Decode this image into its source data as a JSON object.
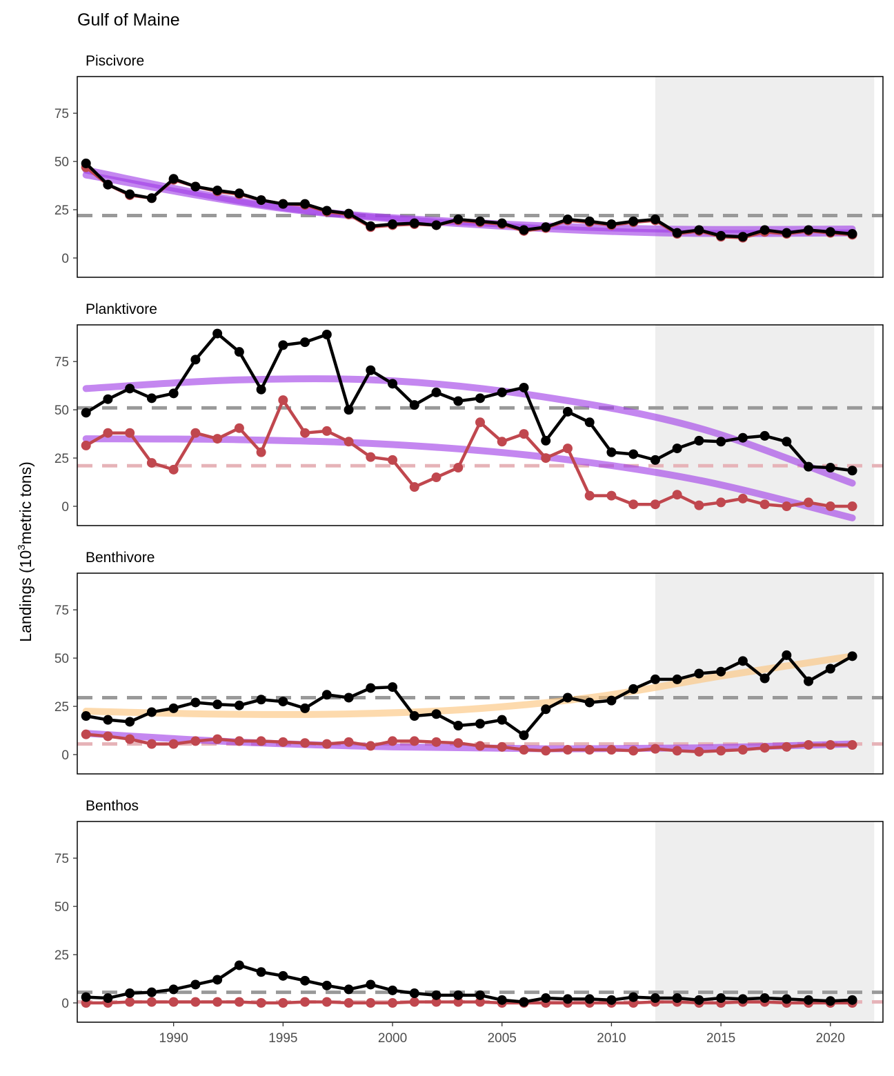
{
  "chart_data": {
    "type": "line",
    "title": "Gulf of Maine",
    "ylabel": "Landings (10^3 metric tons)",
    "ylabel_parts": {
      "prefix": "Landings (10",
      "superscript": "3",
      "suffix": "metric tons)"
    },
    "xlabel": "",
    "xlim": [
      1985.6,
      2022.4
    ],
    "ylim": [
      -10,
      94
    ],
    "x_ticks": [
      1990,
      1995,
      2000,
      2005,
      2010,
      2015,
      2020
    ],
    "y_ticks": [
      0,
      25,
      50,
      75
    ],
    "shaded_region": [
      2012,
      2022
    ],
    "grid": false,
    "colors": {
      "total": "#000000",
      "commercial": "#c0474e",
      "trend_down": "#a03ee6",
      "trend_up": "#fcc47a",
      "mean_total": "#999999",
      "mean_commercial": "#e6b3b8",
      "shade": "#eeeeee"
    },
    "x": [
      1986,
      1987,
      1988,
      1989,
      1990,
      1991,
      1992,
      1993,
      1994,
      1995,
      1996,
      1997,
      1998,
      1999,
      2000,
      2001,
      2002,
      2003,
      2004,
      2005,
      2006,
      2007,
      2008,
      2009,
      2010,
      2011,
      2012,
      2013,
      2014,
      2015,
      2016,
      2017,
      2018,
      2019,
      2020,
      2021
    ],
    "panels": [
      {
        "title": "Piscivore",
        "series": [
          {
            "values": [
              49,
              38,
              33,
              31,
              41,
              37,
              35,
              33.5,
              30,
              28,
              28,
              24.5,
              23,
              16.5,
              17.5,
              18,
              17,
              20,
              19,
              18,
              14.5,
              16,
              20,
              19,
              17.5,
              19,
              20,
              13,
              14.5,
              11.5,
              11,
              14.5,
              13,
              14.5,
              13.5,
              12.5
            ]
          },
          {
            "values": [
              47,
              38,
              32.5,
              31,
              40.5,
              37,
              34.5,
              33,
              30,
              28,
              27.5,
              24,
              22.5,
              16,
              17,
              17.5,
              17,
              19.5,
              18.5,
              17.5,
              14,
              15.5,
              19.5,
              18.5,
              17,
              18.5,
              19.5,
              12.5,
              14,
              11,
              10.5,
              13.5,
              12.5,
              14,
              13,
              12
            ]
          }
        ],
        "means": [
          22,
          22
        ],
        "trends": [
          {
            "color": "trend_down",
            "values": [
              45.5,
              26.5,
              18.5,
              15,
              15
            ]
          },
          {
            "color": "trend_down",
            "values": [
              43,
              26,
              17.5,
              13,
              13
            ]
          }
        ]
      },
      {
        "title": "Planktivore",
        "series": [
          {
            "values": [
              48.5,
              55.5,
              61,
              56,
              58.5,
              76,
              89.5,
              80,
              60.5,
              83.5,
              85,
              89,
              50,
              70.5,
              63.5,
              52.5,
              59,
              54.5,
              56,
              59,
              61.5,
              34,
              49,
              43.5,
              28,
              27,
              24,
              30,
              34,
              33.5,
              35.5,
              36.5,
              33.5,
              20.5,
              20,
              18.5
            ]
          },
          {
            "values": [
              31.5,
              38,
              38,
              22.5,
              19,
              38,
              35,
              40.5,
              28,
              55,
              38,
              39,
              33.5,
              25.5,
              24,
              10,
              15,
              20,
              43.5,
              33.5,
              37.5,
              25,
              30,
              5.5,
              5.5,
              1,
              1,
              6,
              0.5,
              2,
              4,
              1,
              0,
              2,
              0,
              0
            ]
          }
        ],
        "means": [
          51,
          21
        ],
        "trends": [
          {
            "color": "trend_down",
            "values": [
              61,
              65.5,
              65,
              56.5,
              40.5,
              12
            ]
          },
          {
            "color": "trend_down",
            "values": [
              35,
              34.5,
              32,
              25.5,
              13.5,
              -6
            ]
          }
        ]
      },
      {
        "title": "Benthivore",
        "series": [
          {
            "values": [
              20,
              18,
              17,
              22,
              24,
              27,
              26,
              25.5,
              28.5,
              27.5,
              24,
              31,
              29.5,
              34.5,
              35,
              20,
              21,
              15,
              16,
              18,
              10,
              23.5,
              29.5,
              27,
              28,
              34,
              39,
              39,
              42,
              43,
              48.5,
              39.5,
              51.5,
              38,
              44.5,
              51
            ]
          },
          {
            "values": [
              10.5,
              9.5,
              8,
              5.5,
              5.5,
              7,
              8,
              7,
              7,
              6.5,
              6,
              5.5,
              6.5,
              4.5,
              7,
              7,
              6.5,
              6,
              4.5,
              4,
              2.5,
              2,
              2.5,
              2.5,
              2.5,
              2,
              3,
              2,
              1.5,
              2,
              2.5,
              3.5,
              4,
              5,
              5,
              5
            ]
          }
        ],
        "means": [
          29.5,
          5.5
        ],
        "trends": [
          {
            "color": "trend_up",
            "values": [
              22.5,
              21,
              21,
              23.5,
              30,
              41,
              51
            ]
          },
          {
            "color": "trend_down",
            "values": [
              11,
              6.5,
              4,
              3,
              3.5,
              5.5
            ]
          }
        ]
      },
      {
        "title": "Benthos",
        "series": [
          {
            "values": [
              3,
              2.5,
              5,
              5.5,
              7,
              9.5,
              12,
              19.5,
              16,
              14,
              11.5,
              9,
              7,
              9.5,
              6.5,
              5,
              4,
              4,
              4,
              1.5,
              0.5,
              2.5,
              2,
              2,
              1.5,
              3,
              2.5,
              2.5,
              1.5,
              2.5,
              2,
              2.5,
              2,
              1.5,
              1,
              1.5
            ]
          },
          {
            "values": [
              0,
              0,
              0.5,
              0.5,
              0.5,
              0.5,
              0.5,
              0.5,
              0,
              0,
              0.5,
              0.5,
              0,
              0,
              0,
              0.5,
              0.5,
              0.5,
              0.5,
              0,
              0,
              0,
              0,
              0,
              0,
              0,
              0.5,
              0.5,
              0,
              0,
              0.5,
              0.5,
              0,
              0,
              0,
              0
            ]
          }
        ],
        "means": [
          5.5,
          0.5
        ],
        "trends": []
      }
    ]
  }
}
